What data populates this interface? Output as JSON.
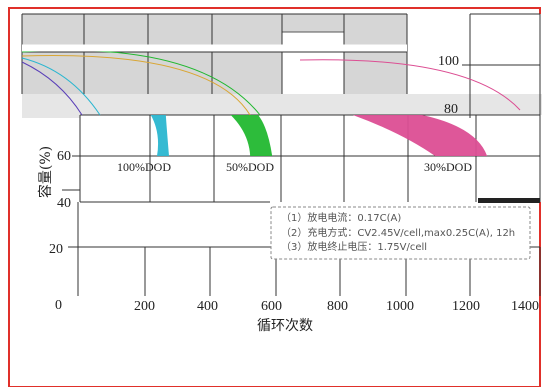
{
  "chart_data": {
    "type": "area",
    "xlabel": "循环次数",
    "ylabel": "容量(%)",
    "xlim": [
      0,
      1400
    ],
    "ylim": [
      0,
      120
    ],
    "x_ticks": [
      0,
      200,
      400,
      600,
      800,
      1000,
      1200,
      1400
    ],
    "y_ticks": [
      20,
      40,
      60,
      80,
      100
    ],
    "series": [
      {
        "name": "100%DOD",
        "color": "#2ab6d0",
        "x": [
          0,
          150,
          220,
          250
        ],
        "y": [
          100,
          95,
          80,
          60
        ]
      },
      {
        "name": "50%DOD",
        "color": "#22b830",
        "x": [
          0,
          300,
          480,
          560
        ],
        "y": [
          100,
          96,
          85,
          60
        ]
      },
      {
        "name": "30%DOD",
        "color": "#dc4e93",
        "x": [
          0,
          600,
          900,
          1200
        ],
        "y": [
          100,
          97,
          86,
          60
        ]
      }
    ],
    "conditions": [
      "（1）放电电流：0.17C(A)",
      "（2）充电方式：CV2.45V/cell,max0.25C(A), 12h",
      "（3）放电终止电压：1.75V/cell"
    ]
  }
}
